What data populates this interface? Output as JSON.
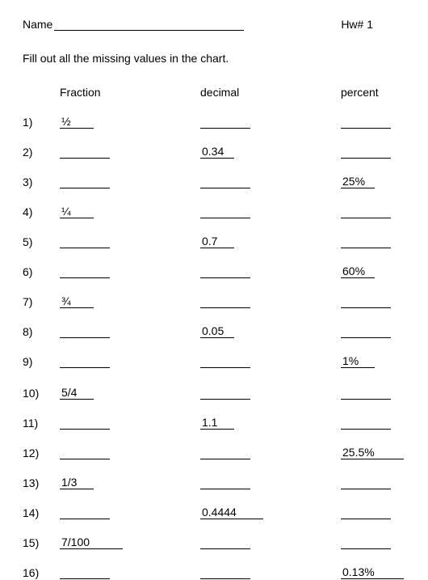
{
  "header": {
    "name_label": "Name",
    "hw_label": "Hw# 1"
  },
  "instruction": "Fill out all the missing values in the chart.",
  "columns": {
    "fraction": "Fraction",
    "decimal": "decimal",
    "percent": "percent"
  },
  "rows": [
    {
      "num": "1)",
      "fraction": "½",
      "decimal": "",
      "percent": "",
      "gap": false
    },
    {
      "num": "2)",
      "fraction": "",
      "decimal": "0.34",
      "percent": "",
      "gap": false
    },
    {
      "num": "3)",
      "fraction": "",
      "decimal": "",
      "percent": "25%",
      "gap": false
    },
    {
      "num": "4)",
      "fraction": "¼",
      "decimal": "",
      "percent": "",
      "gap": false
    },
    {
      "num": "5)",
      "fraction": "",
      "decimal": "0.7",
      "percent": "",
      "gap": false
    },
    {
      "num": "6)",
      "fraction": "",
      "decimal": "",
      "percent": "60%",
      "gap": false
    },
    {
      "num": "7)",
      "fraction": "¾",
      "decimal": "",
      "percent": "",
      "gap": false
    },
    {
      "num": "8)",
      "fraction": "",
      "decimal": "0.05",
      "percent": "",
      "gap": false
    },
    {
      "num": "9)",
      "fraction": "",
      "decimal": "",
      "percent": "1%",
      "gap": false
    },
    {
      "num": "10)",
      "fraction": "5/4",
      "decimal": "",
      "percent": "",
      "gap": true
    },
    {
      "num": "11)",
      "fraction": "",
      "decimal": "1.1",
      "percent": "",
      "gap": false
    },
    {
      "num": "12)",
      "fraction": "",
      "decimal": "",
      "percent": "25.5%",
      "gap": false
    },
    {
      "num": "13)",
      "fraction": "1/3",
      "decimal": "",
      "percent": "",
      "gap": false
    },
    {
      "num": "14)",
      "fraction": "",
      "decimal": "0.4444",
      "percent": "",
      "gap": false
    },
    {
      "num": "15)",
      "fraction": "7/100",
      "decimal": "",
      "percent": "",
      "gap": false
    },
    {
      "num": "16)",
      "fraction": "",
      "decimal": "",
      "percent": "0.13%",
      "gap": false
    }
  ]
}
